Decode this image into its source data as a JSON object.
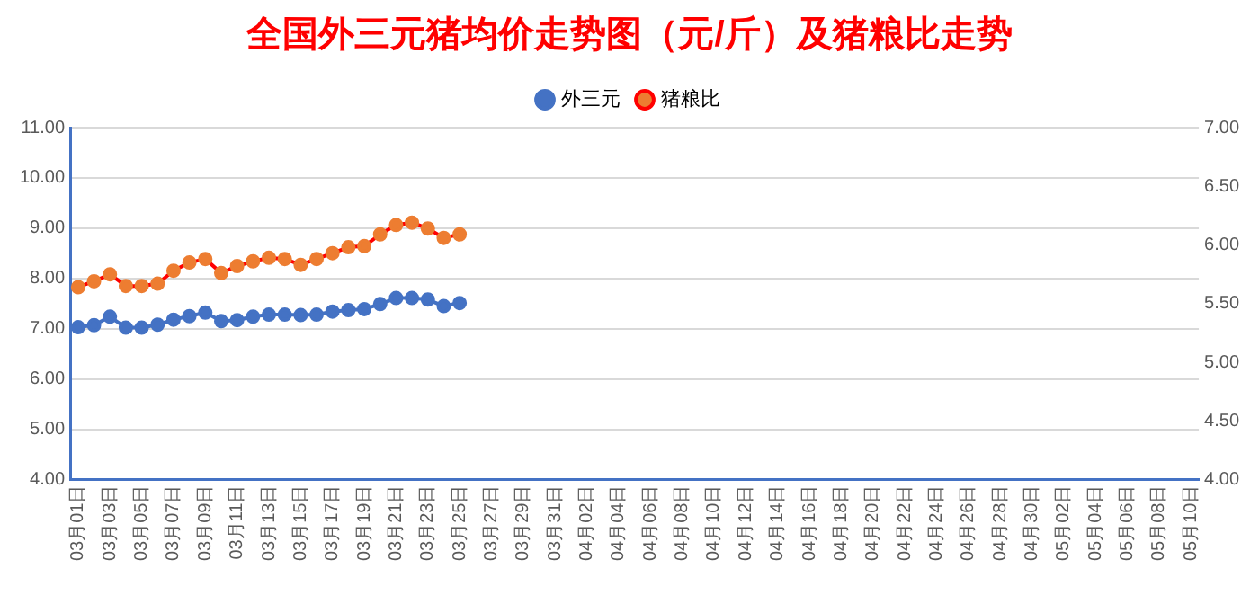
{
  "chart_data": {
    "type": "line",
    "title": "全国外三元猪均价走势图（元/斤）及猪粮比走势",
    "categories": [
      "03月01日",
      null,
      "03月03日",
      null,
      "03月05日",
      null,
      "03月07日",
      null,
      "03月09日",
      null,
      "03月11日",
      null,
      "03月13日",
      null,
      "03月15日",
      null,
      "03月17日",
      null,
      "03月19日",
      null,
      "03月21日",
      null,
      "03月23日",
      null,
      "03月25日",
      null,
      "03月27日",
      null,
      "03月29日",
      null,
      "03月31日",
      null,
      "04月02日",
      null,
      "04月04日",
      null,
      "04月06日",
      null,
      "04月08日",
      null,
      "04月10日",
      null,
      "04月12日",
      null,
      "04月14日",
      null,
      "04月16日",
      null,
      "04月18日",
      null,
      "04月20日",
      null,
      "04月22日",
      null,
      "04月24日",
      null,
      "04月26日",
      null,
      "04月28日",
      null,
      "04月30日",
      null,
      "05月02日",
      null,
      "05月04日",
      null,
      "05月06日",
      null,
      "05月08日",
      null,
      "05月10日"
    ],
    "series": [
      {
        "name": "外三元",
        "color": "#4472c4",
        "values": [
          7.03,
          7.07,
          7.24,
          7.02,
          7.02,
          7.08,
          7.18,
          7.25,
          7.32,
          7.15,
          7.17,
          7.24,
          7.28,
          7.28,
          7.27,
          7.28,
          7.34,
          7.37,
          7.39,
          7.49,
          7.61,
          7.61,
          7.58,
          7.45,
          7.51,
          null,
          null,
          null,
          null,
          null,
          null,
          null,
          null,
          null,
          null,
          null,
          null,
          null,
          null,
          null,
          null,
          null,
          null,
          null,
          null,
          null,
          null,
          null,
          null,
          null,
          null,
          null,
          null,
          null,
          null,
          null,
          null,
          null,
          null,
          null,
          null,
          null,
          null,
          null,
          null,
          null,
          null,
          null,
          null,
          null,
          null
        ]
      },
      {
        "name": "猪粮比",
        "color": "#ff0000",
        "colors": [
          "#ed7d31",
          "#ed7d31",
          "#ed7d31",
          "#ed7d31",
          "#ed7d31",
          "#ed7d31",
          "#ed7d31",
          "#ed7d31",
          "#ed7d31",
          "#ed7d31",
          "#ed7d31",
          "#ed7d31",
          "#ed7d31",
          "#ed7d31",
          "#ed7d31",
          "#ed7d31",
          "#ed7d31",
          "#ed7d31",
          "#ed7d31",
          "#ed7d31",
          "#ed7d31",
          "#ed7d31",
          "#ed7d31",
          "#ed7d31",
          "#ed7d31",
          "#ed7d31",
          "#ed7d31",
          "#ed7d31",
          "#ed7d31",
          "#ed7d31",
          "#ed7d31",
          "#ed7d31",
          "#ed7d31",
          "#ed7d31",
          "#ed7d31",
          "#ed7d31",
          "#ed7d31",
          "#ed7d31",
          "#ed7d31",
          "#ed7d31",
          "#ed7d31",
          "#ed7d31",
          "#ed7d31",
          "#ed7d31",
          "#ed7d31",
          "#ed7d31",
          "#ed7d31",
          "#ed7d31",
          "#ed7d31",
          "#ed7d31",
          "#ed7d31",
          "#ed7d31",
          "#ed7d31",
          "#ed7d31",
          "#ed7d31",
          "#ed7d31",
          "#ed7d31",
          "#ed7d31",
          "#ed7d31",
          "#ed7d31",
          "#ed7d31",
          "#ed7d31",
          "#ed7d31",
          "#ed7d31",
          "#ed7d31",
          "#ed7d31",
          "#ed7d31",
          "#ed7d31",
          "#ed7d31",
          "#ed7d31",
          "#ed7d31"
        ],
        "axis": "y2",
        "values": [
          5.64,
          5.69,
          5.75,
          5.65,
          5.65,
          5.67,
          5.78,
          5.85,
          5.88,
          5.76,
          5.82,
          5.86,
          5.89,
          5.88,
          5.83,
          5.88,
          5.93,
          5.98,
          5.99,
          6.09,
          6.17,
          6.19,
          6.14,
          6.06,
          6.09,
          null,
          null,
          null,
          null,
          null,
          null,
          null,
          null,
          null,
          null,
          null,
          null,
          null,
          null,
          null,
          null,
          null,
          null,
          null,
          null,
          null,
          null,
          null,
          null,
          null,
          null,
          null,
          null,
          null,
          null,
          null,
          null,
          null,
          null,
          null,
          null,
          null,
          null,
          null,
          null,
          null,
          null,
          null,
          null,
          null,
          null
        ]
      }
    ],
    "ylim": [
      4,
      11
    ],
    "yticks": [
      {
        "value": 4,
        "label": "4.00"
      },
      {
        "value": 5,
        "label": "5.00"
      },
      {
        "value": 6,
        "label": "6.00"
      },
      {
        "value": 7,
        "label": "7.00"
      },
      {
        "value": 8,
        "label": "8.00"
      },
      {
        "value": 9,
        "label": "9.00"
      },
      {
        "value": 10,
        "label": "10.00"
      },
      {
        "value": 11,
        "label": "11.00"
      }
    ],
    "y2lim": [
      4,
      7
    ],
    "y2ticks": [
      {
        "value": 4,
        "label": "4.00"
      },
      {
        "value": 4.5,
        "label": "4.50"
      },
      {
        "value": 5,
        "label": "5.00"
      },
      {
        "value": 5.5,
        "label": "5.50"
      },
      {
        "value": 6,
        "label": "6.00"
      },
      {
        "value": 6.5,
        "label": "6.50"
      },
      {
        "value": 7,
        "label": "7.00"
      }
    ],
    "grid": "y",
    "legend": "top",
    "marker": "circle",
    "line_style": "solid"
  }
}
